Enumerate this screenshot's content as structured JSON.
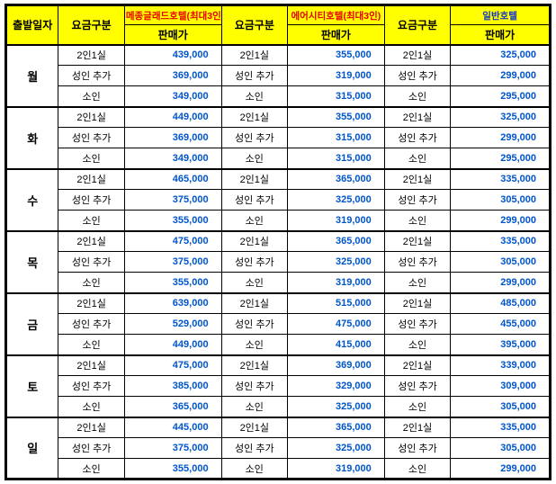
{
  "table": {
    "header": {
      "departure_label": "출발일자",
      "fare_label": "요금구분",
      "price_label": "판매가",
      "hotels": [
        {
          "name": "메종글래드호텔(최대3인)",
          "color": "#e60000"
        },
        {
          "name": "에어시티호텔(최대3인)",
          "color": "#e60000"
        },
        {
          "name": "일반호텔",
          "color": "#1133cc"
        }
      ]
    },
    "row_categories": [
      "2인1실",
      "성인 추가",
      "소인"
    ],
    "days": [
      {
        "day": "월",
        "prices": [
          [
            "439,000",
            "355,000",
            "325,000"
          ],
          [
            "369,000",
            "319,000",
            "299,000"
          ],
          [
            "349,000",
            "315,000",
            "295,000"
          ]
        ]
      },
      {
        "day": "화",
        "prices": [
          [
            "449,000",
            "355,000",
            "325,000"
          ],
          [
            "369,000",
            "315,000",
            "299,000"
          ],
          [
            "349,000",
            "315,000",
            "295,000"
          ]
        ]
      },
      {
        "day": "수",
        "prices": [
          [
            "465,000",
            "365,000",
            "335,000"
          ],
          [
            "375,000",
            "325,000",
            "305,000"
          ],
          [
            "355,000",
            "319,000",
            "299,000"
          ]
        ]
      },
      {
        "day": "목",
        "prices": [
          [
            "475,000",
            "365,000",
            "335,000"
          ],
          [
            "375,000",
            "325,000",
            "305,000"
          ],
          [
            "355,000",
            "319,000",
            "299,000"
          ]
        ]
      },
      {
        "day": "금",
        "prices": [
          [
            "639,000",
            "515,000",
            "485,000"
          ],
          [
            "529,000",
            "475,000",
            "455,000"
          ],
          [
            "449,000",
            "415,000",
            "395,000"
          ]
        ]
      },
      {
        "day": "토",
        "prices": [
          [
            "475,000",
            "369,000",
            "339,000"
          ],
          [
            "385,000",
            "329,000",
            "309,000"
          ],
          [
            "365,000",
            "325,000",
            "305,000"
          ]
        ]
      },
      {
        "day": "일",
        "prices": [
          [
            "445,000",
            "365,000",
            "335,000"
          ],
          [
            "375,000",
            "325,000",
            "305,000"
          ],
          [
            "355,000",
            "319,000",
            "299,000"
          ]
        ]
      }
    ],
    "colors": {
      "header_bg": "#ffff00",
      "price_text": "#0055cc",
      "border": "#000000"
    }
  }
}
